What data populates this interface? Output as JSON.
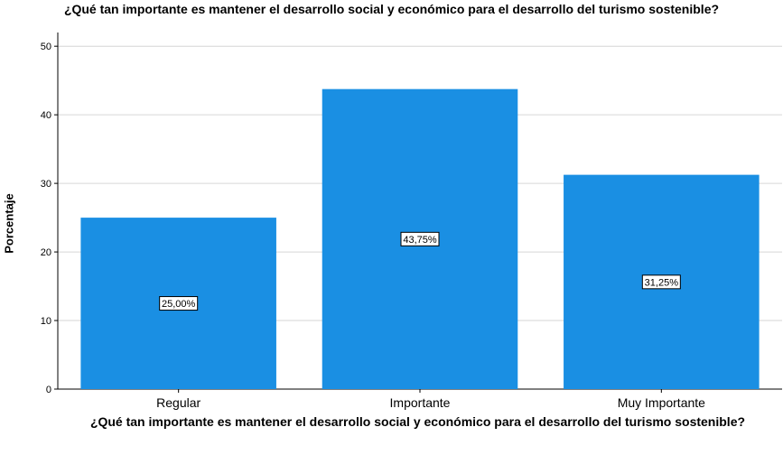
{
  "chart_data": {
    "type": "bar",
    "title": "¿Qué tan importante es mantener el desarrollo social y económico para el desarrollo del turismo sostenible?",
    "xlabel": "¿Qué tan importante es mantener el desarrollo social y económico para el desarrollo del turismo sostenible?",
    "ylabel": "Porcentaje",
    "categories": [
      "Regular",
      "Importante",
      "Muy Importante"
    ],
    "values": [
      25.0,
      43.75,
      31.25
    ],
    "data_labels": [
      "25,00%",
      "43,75%",
      "31,25%"
    ],
    "ylim": [
      0,
      52
    ],
    "yticks": [
      0,
      10,
      20,
      30,
      40,
      50
    ],
    "grid": true,
    "bar_color": "#1a8fe3"
  }
}
